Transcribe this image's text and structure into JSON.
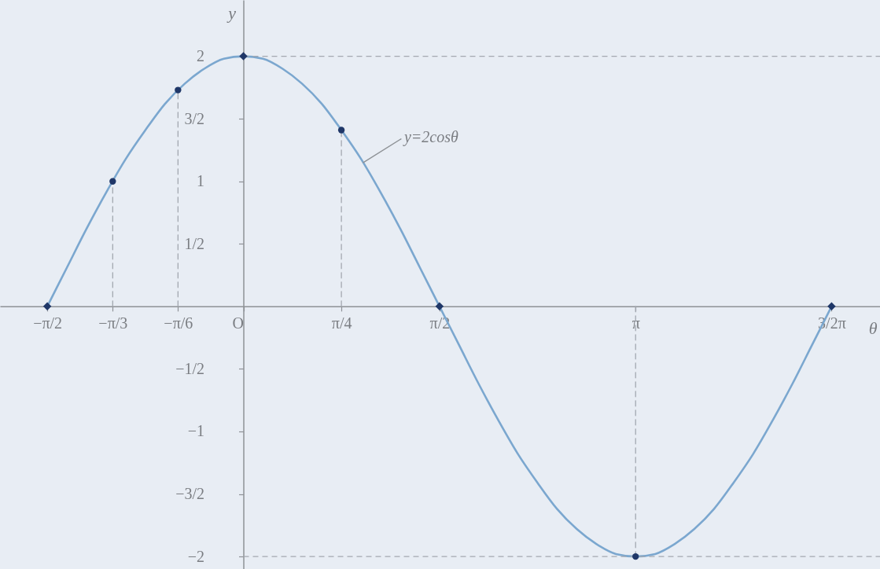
{
  "chart_data": {
    "type": "line",
    "xlabel": "θ",
    "ylabel": "y",
    "xlim": [
      -1.95,
      5.1
    ],
    "ylim": [
      -2.1,
      2.45
    ],
    "xticks": [
      {
        "value": -1.571,
        "label": "−π/2"
      },
      {
        "value": -1.047,
        "label": "−π/3"
      },
      {
        "value": -0.524,
        "label": "−π/6"
      },
      {
        "value": 0,
        "label": "O"
      },
      {
        "value": 0.785,
        "label": "π/4"
      },
      {
        "value": 1.571,
        "label": "π/2"
      },
      {
        "value": 3.142,
        "label": "π"
      },
      {
        "value": 4.712,
        "label": "3/2π"
      }
    ],
    "yticks": [
      2,
      {
        "value": 1.5,
        "label": "3/2"
      },
      1,
      {
        "value": 0.5,
        "label": "1/2"
      },
      {
        "value": -0.5,
        "label": "−1/2"
      },
      -1,
      {
        "value": -1.5,
        "label": "−3/2"
      },
      -2
    ],
    "series": [
      {
        "color": "#7ba7cf",
        "marker": "none",
        "line_style": "solid",
        "x": [
          -1.571,
          -1.414,
          -1.257,
          -1.1,
          -0.942,
          -0.785,
          -0.628,
          -0.471,
          -0.314,
          -0.157,
          0,
          0.157,
          0.314,
          0.471,
          0.628,
          0.785,
          0.942,
          1.1,
          1.257,
          1.414,
          1.571,
          1.728,
          1.885,
          2.042,
          2.199,
          2.356,
          2.513,
          2.67,
          2.827,
          2.985,
          3.142,
          3.299,
          3.456,
          3.613,
          3.77,
          3.927,
          4.084,
          4.241,
          4.398,
          4.555,
          4.712
        ],
        "values": [
          0,
          0.31,
          0.62,
          0.91,
          1.18,
          1.41,
          1.62,
          1.78,
          1.9,
          1.98,
          2,
          1.98,
          1.9,
          1.78,
          1.62,
          1.41,
          1.18,
          0.91,
          0.62,
          0.31,
          0,
          -0.31,
          -0.62,
          -0.91,
          -1.18,
          -1.41,
          -1.62,
          -1.78,
          -1.9,
          -1.98,
          -2,
          -1.98,
          -1.9,
          -1.78,
          -1.62,
          -1.41,
          -1.18,
          -0.91,
          -0.62,
          -0.31,
          0
        ]
      },
      {
        "type": "line",
        "color": "#a3a8b0",
        "marker": "none",
        "line_style": "dashed",
        "x": [
          -1.047,
          -1.047
        ],
        "values": [
          0,
          1
        ]
      },
      {
        "type": "line",
        "color": "#a3a8b0",
        "marker": "none",
        "line_style": "dashed",
        "x": [
          -0.524,
          -0.524
        ],
        "values": [
          0,
          1.73
        ]
      },
      {
        "type": "line",
        "color": "#a3a8b0",
        "marker": "none",
        "line_style": "dashed",
        "x": [
          0.785,
          0.785
        ],
        "values": [
          0,
          1.41
        ]
      },
      {
        "type": "line",
        "color": "#a3a8b0",
        "marker": "none",
        "line_style": "dashed",
        "x": [
          3.142,
          3.142
        ],
        "values": [
          0,
          -2
        ]
      },
      {
        "type": "scatter",
        "color": "#1f3768",
        "marker": "circle",
        "x": [
          -1.047,
          -0.524,
          0.785,
          3.142
        ],
        "values": [
          1,
          1.73,
          1.41,
          -2
        ]
      },
      {
        "type": "scatter",
        "color": "#1f3768",
        "marker": "diamond",
        "x": [
          -1.571,
          0,
          1.571,
          4.712
        ],
        "values": [
          0,
          2,
          0,
          0
        ]
      }
    ],
    "ref_lines": [
      {
        "axis": "y",
        "value": 2,
        "line_style": "dashed",
        "color": "#a3a8b0"
      },
      {
        "axis": "y",
        "value": -2,
        "line_style": "dashed",
        "color": "#a3a8b0"
      }
    ],
    "annotations": [
      {
        "text": "y=2cosθ",
        "x": 0.96,
        "y": 1.15
      }
    ]
  }
}
